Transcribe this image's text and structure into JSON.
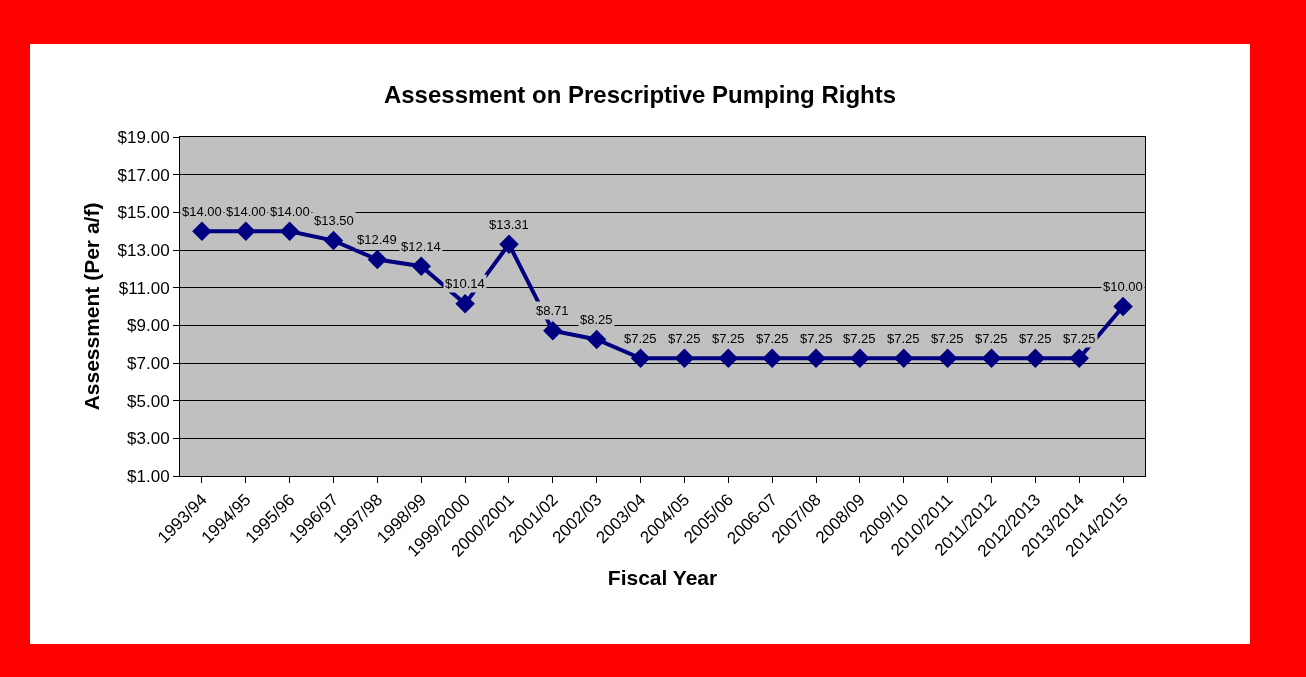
{
  "chart_data": {
    "type": "line",
    "title": "Assessment on Prescriptive Pumping Rights",
    "xlabel": "Fiscal Year",
    "ylabel": "Assessment (Per a/f)",
    "categories": [
      "1993/94",
      "1994/95",
      "1995/96",
      "1996/97",
      "1997/98",
      "1998/99",
      "1999/2000",
      "2000/2001",
      "2001/02",
      "2002/03",
      "2003/04",
      "2004/05",
      "2005/06",
      "2006-07",
      "2007/08",
      "2008/09",
      "2009/10",
      "2010/2011",
      "2011/2012",
      "2012/2013",
      "2013/2014",
      "2014/2015"
    ],
    "series": [
      {
        "color": "#000080",
        "values": [
          14,
          14,
          14,
          13.5,
          12.49,
          12.14,
          10.14,
          13.31,
          8.71,
          8.25,
          7.25,
          7.25,
          7.25,
          7.25,
          7.25,
          7.25,
          7.25,
          7.25,
          7.25,
          7.25,
          7.25,
          10
        ],
        "value_labels": [
          "$14.00",
          "$14.00",
          "$14.00",
          "$13.50",
          "$12.49",
          "$12.14",
          "$10.14",
          "$13.31",
          "$8.71",
          "$8.25",
          "$7.25",
          "$7.25",
          "$7.25",
          "$7.25",
          "$7.25",
          "$7.25",
          "$7.25",
          "$7.25",
          "$7.25",
          "$7.25",
          "$7.25",
          "$10.00"
        ]
      }
    ],
    "ylim": [
      1,
      19
    ],
    "yticks": [
      {
        "value": 1,
        "label": "$1.00"
      },
      {
        "value": 3,
        "label": "$3.00"
      },
      {
        "value": 5,
        "label": "$5.00"
      },
      {
        "value": 7,
        "label": "$7.00"
      },
      {
        "value": 9,
        "label": "$9.00"
      },
      {
        "value": 11,
        "label": "$11.00"
      },
      {
        "value": 13,
        "label": "$13.00"
      },
      {
        "value": 15,
        "label": "$15.00"
      },
      {
        "value": 17,
        "label": "$17.00"
      },
      {
        "value": 19,
        "label": "$19.00"
      }
    ],
    "grid": "y",
    "marker": "diamond",
    "line_style": "solid"
  }
}
